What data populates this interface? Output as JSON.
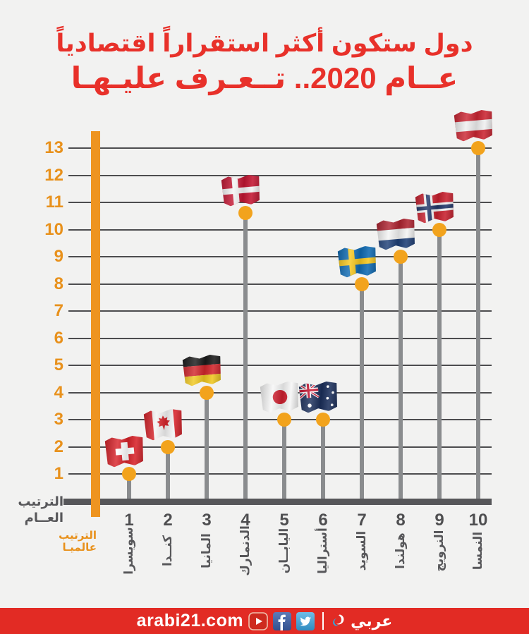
{
  "title": {
    "line1": "دول ستكون أكثر استقراراً اقتصادياً",
    "line2": "عــام 2020.. تــعـرف عليـهـا"
  },
  "axis_labels": {
    "overall_line1": "الترتيب",
    "overall_line2": "العــام",
    "global_line1": "الترتيب",
    "global_line2": "عالميـا"
  },
  "chart_data": {
    "type": "scatter",
    "title": "دول ستكون أكثر استقراراً اقتصادياً عام 2020.. تعرف عليها",
    "xlabel": "الترتيب عالميا",
    "ylabel": "الترتيب العام",
    "xlim": [
      1,
      10
    ],
    "ylim": [
      0,
      13
    ],
    "grid": true,
    "y_ticks": [
      13,
      12,
      11,
      10,
      9,
      8,
      7,
      6,
      5,
      4,
      3,
      2,
      1
    ],
    "points": [
      {
        "x": 1,
        "y": 1,
        "country": "سويسرا",
        "flag": "switzerland-flag-icon",
        "flag_key": "switzerland"
      },
      {
        "x": 2,
        "y": 2,
        "country": "كنــدا",
        "flag": "canada-flag-icon",
        "flag_key": "canada"
      },
      {
        "x": 3,
        "y": 4,
        "country": "المانيا",
        "flag": "germany-flag-icon",
        "flag_key": "germany"
      },
      {
        "x": 4,
        "y": 10.6,
        "country": "الدنمارك",
        "flag": "denmark-flag-icon",
        "flag_key": "denmark"
      },
      {
        "x": 5,
        "y": 3,
        "country": "اليابــان",
        "flag": "japan-flag-icon",
        "flag_key": "japan"
      },
      {
        "x": 6,
        "y": 3,
        "country": "أستراليا",
        "flag": "australia-flag-icon",
        "flag_key": "australia"
      },
      {
        "x": 7,
        "y": 8,
        "country": "السويد",
        "flag": "sweden-flag-icon",
        "flag_key": "sweden"
      },
      {
        "x": 8,
        "y": 9,
        "country": "هولندا",
        "flag": "netherlands-flag-icon",
        "flag_key": "netherlands"
      },
      {
        "x": 9,
        "y": 10,
        "country": "النرويج",
        "flag": "norway-flag-icon",
        "flag_key": "norway"
      },
      {
        "x": 10,
        "y": 13,
        "country": "النمسا",
        "flag": "austria-flag-icon",
        "flag_key": "austria"
      }
    ]
  },
  "footer": {
    "site": "arabi21.com",
    "brand": "عربي",
    "icons": [
      "youtube-icon",
      "facebook-icon",
      "twitter-icon",
      "arabi21-logo-mark"
    ]
  },
  "colors": {
    "background": "#F2F2F1",
    "title_red": "#E8312A",
    "accent_orange": "#EE9420",
    "dot_orange": "#F2A31D",
    "tick_orange": "#E8911C",
    "axis_dark": "#57575A",
    "pole_gray": "#8A8C8E",
    "grid_gray": "#4D4D4F",
    "label_gray": "#57575A",
    "footer_red": "#E22B24"
  }
}
